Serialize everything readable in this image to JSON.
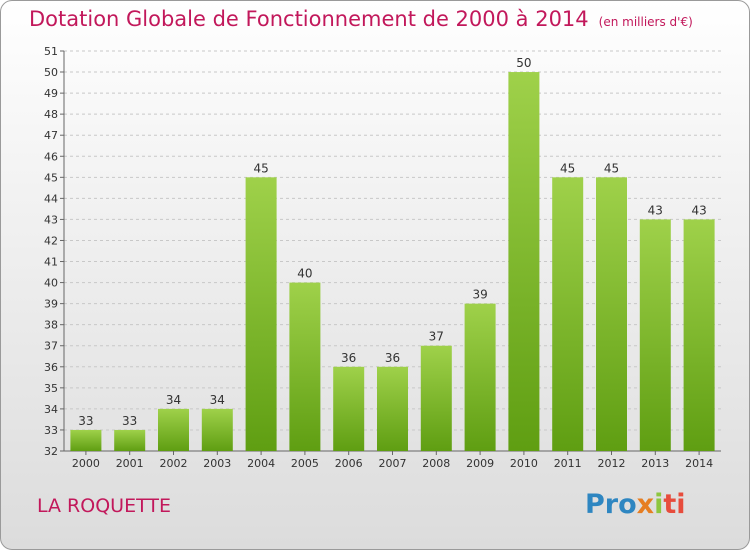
{
  "title": "Dotation Globale de Fonctionnement de 2000 à 2014",
  "unit": "(en milliers d'€)",
  "commune": "LA ROQUETTE",
  "logo": {
    "p1": "Pro",
    "p2": "x",
    "p3": "i",
    "p4": "ti"
  },
  "colors": {
    "bar_top": "#9fd14a",
    "bar_bottom": "#5f9e12",
    "title": "#c2185b",
    "grid": "#c8c8c8"
  },
  "chart_data": {
    "type": "bar",
    "categories": [
      "2000",
      "2001",
      "2002",
      "2003",
      "2004",
      "2005",
      "2006",
      "2007",
      "2008",
      "2009",
      "2010",
      "2011",
      "2012",
      "2013",
      "2014"
    ],
    "values": [
      33,
      33,
      34,
      34,
      45,
      40,
      36,
      36,
      37,
      39,
      50,
      45,
      45,
      43,
      43
    ],
    "ylim": [
      32,
      51
    ],
    "yticks": [
      32,
      33,
      34,
      35,
      36,
      37,
      38,
      39,
      40,
      41,
      42,
      43,
      44,
      45,
      46,
      47,
      48,
      49,
      50,
      51
    ],
    "grid": true,
    "data_labels": true
  }
}
